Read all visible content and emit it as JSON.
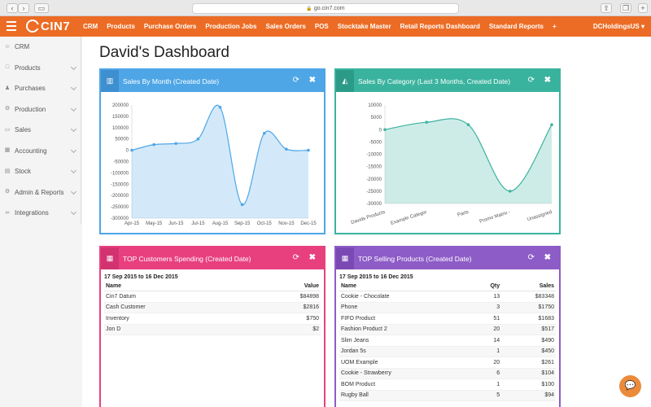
{
  "browser": {
    "url": "go.cin7.com",
    "back": "‹",
    "forward": "›"
  },
  "app": {
    "logo": "CIN7",
    "menu": [
      "CRM",
      "Products",
      "Purchase Orders",
      "Production Jobs",
      "Sales Orders",
      "POS",
      "Stocktake Master",
      "Retail Reports Dashboard",
      "Standard Reports",
      "+"
    ],
    "account": "DCHoldingsUS ▾"
  },
  "sidebar": {
    "items": [
      {
        "label": "CRM",
        "icon": "user-icon",
        "glyph": "☺"
      },
      {
        "label": "Products",
        "icon": "box-icon",
        "glyph": "□"
      },
      {
        "label": "Purchases",
        "icon": "person-icon",
        "glyph": "♟"
      },
      {
        "label": "Production",
        "icon": "gears-icon",
        "glyph": "⚙"
      },
      {
        "label": "Sales",
        "icon": "tag-icon",
        "glyph": "▭"
      },
      {
        "label": "Accounting",
        "icon": "calculator-icon",
        "glyph": "▦"
      },
      {
        "label": "Stock",
        "icon": "clipboard-icon",
        "glyph": "▤"
      },
      {
        "label": "Admin & Reports",
        "icon": "gear-icon",
        "glyph": "⚙"
      },
      {
        "label": "Integrations",
        "icon": "link-icon",
        "glyph": "∞"
      }
    ]
  },
  "page": {
    "title": "David's Dashboard"
  },
  "widgets": {
    "sales_by_month": {
      "title": "Sales By Month (Created Date)"
    },
    "sales_by_category": {
      "title": "Sales By Category (Last 3 Months, Created Date)"
    },
    "top_customers": {
      "title": "TOP Customers Spending (Created Date)",
      "date_range": "17 Sep 2015 to 16 Dec 2015",
      "headers": [
        "Name",
        "Value"
      ],
      "rows": [
        [
          "Cin7 Datum",
          "$84898"
        ],
        [
          "Cash Customer",
          "$2816"
        ],
        [
          "Inventory",
          "$750"
        ],
        [
          "Jon D",
          "$2"
        ]
      ]
    },
    "top_products": {
      "title": "TOP Selling Products (Created Date)",
      "date_range": "17 Sep 2015 to 16 Dec 2015",
      "headers": [
        "Name",
        "Qty",
        "Sales"
      ],
      "rows": [
        [
          "Cookie - Chocolate",
          "13",
          "$83348"
        ],
        [
          "Phone",
          "3",
          "$1750"
        ],
        [
          "FIFO Product",
          "51",
          "$1683"
        ],
        [
          "Fashion Product 2",
          "20",
          "$517"
        ],
        [
          "Slim Jeans",
          "14",
          "$490"
        ],
        [
          "Jordan 5s",
          "1",
          "$450"
        ],
        [
          "UOM Example",
          "20",
          "$261"
        ],
        [
          "Cookie - Strawberry",
          "6",
          "$104"
        ],
        [
          "BOM Product",
          "1",
          "$100"
        ],
        [
          "Rugby Ball",
          "5",
          "$94"
        ]
      ]
    },
    "refresh_glyph": "⟳",
    "close_glyph": "✖"
  },
  "colors": {
    "brand": "#ec6c25",
    "blue": "#4ea6e6",
    "teal": "#3ab39e",
    "pink": "#e8407f",
    "purple": "#8d5cc7"
  },
  "chat": {
    "glyph": "💬"
  },
  "chart_data": [
    {
      "type": "area",
      "categories": [
        "Apr-15",
        "May-15",
        "Jun-15",
        "Jul-15",
        "Aug-15",
        "Sep-15",
        "Oct-15",
        "Nov-15",
        "Dec-15"
      ],
      "values": [
        0,
        25000,
        30000,
        50000,
        190000,
        -240000,
        75000,
        5000,
        0
      ],
      "ylim": [
        -300000,
        200000
      ],
      "yticks": [
        200000,
        150000,
        100000,
        50000,
        0,
        -50000,
        -100000,
        -150000,
        -200000,
        -250000,
        -300000
      ],
      "color": "#4ea6e6",
      "grid": false
    },
    {
      "type": "area",
      "categories": [
        "Davids Products",
        "Example Categor",
        "Parts",
        "Promo Matrix -",
        "Unassigned"
      ],
      "values": [
        0,
        3000,
        2000,
        -25000,
        2000
      ],
      "ylim": [
        -30000,
        10000
      ],
      "yticks": [
        10000,
        5000,
        0,
        -5000,
        -10000,
        -15000,
        -20000,
        -25000,
        -30000
      ],
      "color": "#3ab39e",
      "grid": false
    }
  ]
}
